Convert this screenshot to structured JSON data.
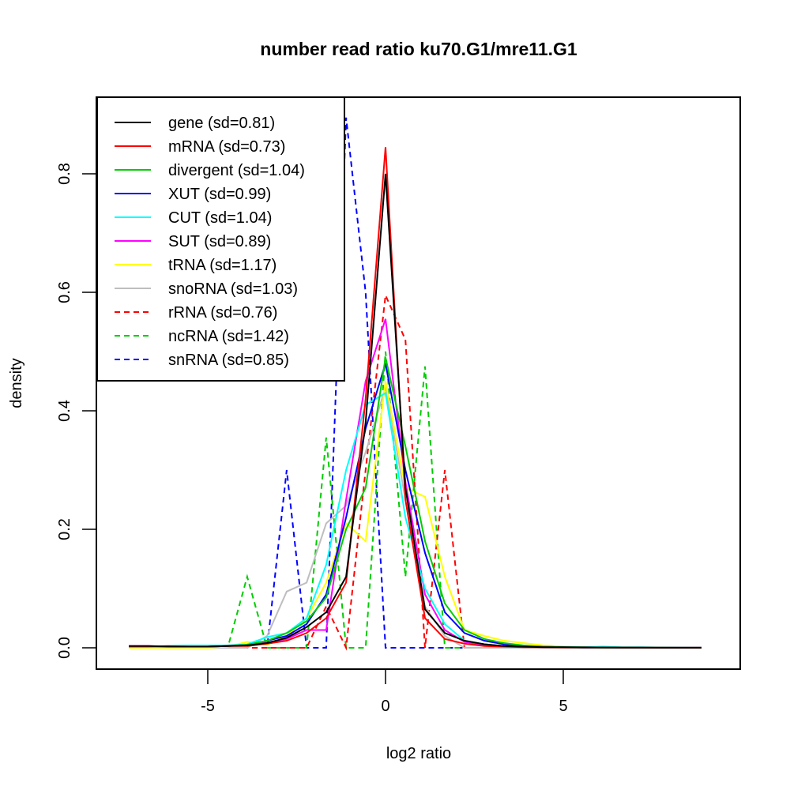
{
  "chart_data": {
    "type": "line",
    "title": "number read ratio ku70.G1/mre11.G1",
    "xlabel": "log2 ratio",
    "ylabel": "density",
    "xlim": [
      -8.2,
      10.0
    ],
    "ylim": [
      -0.035,
      0.935
    ],
    "xticks": [
      -5,
      0,
      5
    ],
    "xtick_labels": [
      "-5",
      "0",
      "5"
    ],
    "yticks": [
      0.0,
      0.2,
      0.4,
      0.6,
      0.8
    ],
    "ytick_labels": [
      "0.0",
      "0.2",
      "0.4",
      "0.6",
      "0.8"
    ],
    "grid": false,
    "legend_position": "top-left",
    "x": [
      -7.22,
      -6.67,
      -6.11,
      -5.56,
      -5.0,
      -4.44,
      -3.89,
      -3.33,
      -2.78,
      -2.22,
      -1.67,
      -1.11,
      -0.56,
      0.0,
      0.56,
      1.11,
      1.67,
      2.22,
      2.78,
      3.33,
      3.89,
      4.44,
      5.0,
      5.56,
      6.11,
      6.67,
      7.22,
      7.78,
      8.33,
      8.89
    ],
    "series": [
      {
        "name": "gene (sd=0.81)",
        "color": "#000000",
        "dash": "solid",
        "values": [
          0.003,
          0.003,
          0.002,
          0.002,
          0.002,
          0.003,
          0.004,
          0.008,
          0.017,
          0.035,
          0.06,
          0.12,
          0.38,
          0.8,
          0.27,
          0.065,
          0.025,
          0.012,
          0.006,
          0.003,
          0.002,
          0.001,
          0.001,
          0.0005,
          0.0005,
          0.0003,
          0.0003,
          0.0002,
          0.0002,
          0.0001
        ]
      },
      {
        "name": "mRNA (sd=0.73)",
        "color": "#ff0000",
        "dash": "solid",
        "values": [
          0.002,
          0.002,
          0.003,
          0.002,
          0.002,
          0.003,
          0.003,
          0.007,
          0.012,
          0.025,
          0.05,
          0.11,
          0.42,
          0.845,
          0.25,
          0.05,
          0.015,
          0.007,
          0.003,
          0.002,
          0.001,
          0.001,
          0.0005,
          0.0005,
          0.0003,
          0.0003,
          0.0002,
          0.0002,
          0.0001,
          0.0001
        ]
      },
      {
        "name": "divergent (sd=1.04)",
        "color": "#00cd00",
        "dash": "solid",
        "values": [
          0.002,
          0.002,
          0.002,
          0.002,
          0.002,
          0.003,
          0.005,
          0.012,
          0.025,
          0.045,
          0.085,
          0.2,
          0.27,
          0.49,
          0.34,
          0.18,
          0.075,
          0.03,
          0.015,
          0.008,
          0.004,
          0.002,
          0.001,
          0.001,
          0.0005,
          0.0005,
          0.0003,
          0.0003,
          0.0002,
          0.0001
        ]
      },
      {
        "name": "XUT (sd=0.99)",
        "color": "#0000ff",
        "dash": "solid",
        "values": [
          0.002,
          0.002,
          0.002,
          0.002,
          0.002,
          0.003,
          0.005,
          0.012,
          0.02,
          0.04,
          0.09,
          0.22,
          0.37,
          0.48,
          0.3,
          0.16,
          0.06,
          0.025,
          0.012,
          0.006,
          0.003,
          0.002,
          0.001,
          0.001,
          0.0005,
          0.0005,
          0.0003,
          0.0003,
          0.0002,
          0.0001
        ]
      },
      {
        "name": "CUT (sd=1.04)",
        "color": "#00ffff",
        "dash": "solid",
        "values": [
          0.002,
          0.002,
          0.003,
          0.004,
          0.004,
          0.004,
          0.006,
          0.018,
          0.025,
          0.05,
          0.14,
          0.3,
          0.41,
          0.43,
          0.22,
          0.1,
          0.04,
          0.012,
          0.006,
          0.003,
          0.003,
          0.002,
          0.001,
          0.001,
          0.002,
          0.001,
          0.001,
          0.0005,
          0.0003,
          0.0002
        ]
      },
      {
        "name": "SUT (sd=0.89)",
        "color": "#ff00ff",
        "dash": "solid",
        "values": [
          0.003,
          0.003,
          0.002,
          0.002,
          0.003,
          0.004,
          0.005,
          0.009,
          0.015,
          0.03,
          0.03,
          0.25,
          0.45,
          0.555,
          0.28,
          0.09,
          0.03,
          0.01,
          0.005,
          0.003,
          0.002,
          0.001,
          0.001,
          0.0005,
          0.0005,
          0.0003,
          0.0003,
          0.0002,
          0.0002,
          0.0001
        ]
      },
      {
        "name": "tRNA (sd=1.17)",
        "color": "#ffff00",
        "dash": "solid",
        "values": [
          0.0,
          0.0,
          0.0,
          0.0,
          0.0,
          0.002,
          0.01,
          0.005,
          0.02,
          0.05,
          0.11,
          0.21,
          0.18,
          0.45,
          0.27,
          0.255,
          0.12,
          0.03,
          0.02,
          0.012,
          0.008,
          0.004,
          0.002,
          0.001,
          0.0,
          0.0,
          0.0,
          0.0,
          0.0,
          0.0
        ]
      },
      {
        "name": "snoRNA (sd=1.03)",
        "color": "#bebebe",
        "dash": "solid",
        "values": [
          0.0,
          0.0,
          0.0,
          0.0,
          0.0,
          0.0,
          0.0,
          0.02,
          0.095,
          0.11,
          0.21,
          0.24,
          0.33,
          0.44,
          0.25,
          0.07,
          0.02,
          0.0,
          0.0,
          0.0,
          0.0,
          0.0,
          0.0,
          0.0,
          0.0,
          0.0,
          0.0,
          0.0,
          0.0,
          0.0
        ]
      },
      {
        "name": "rRNA (sd=0.76)",
        "color": "#ff0000",
        "dash": "dashed",
        "values": [
          0.0,
          0.0,
          0.0,
          0.0,
          0.0,
          0.0,
          0.0,
          0.0,
          0.0,
          0.0,
          0.07,
          0.0,
          0.3,
          0.595,
          0.52,
          0.0,
          0.3,
          0.0,
          0.0,
          0.0,
          0.0,
          0.0,
          0.0,
          0.0,
          0.0,
          0.0,
          0.0,
          0.0,
          0.0,
          0.0
        ]
      },
      {
        "name": "ncRNA (sd=1.42)",
        "color": "#00cd00",
        "dash": "dashed",
        "values": [
          0.0,
          0.0,
          0.0,
          0.0,
          0.0,
          0.0,
          0.12,
          0.0,
          0.0,
          0.0,
          0.355,
          0.0,
          0.0,
          0.5,
          0.12,
          0.475,
          0.0,
          0.0,
          0.0,
          0.0,
          0.0,
          0.0,
          0.0,
          0.0,
          0.0,
          0.0,
          0.0,
          0.0,
          0.0,
          0.0
        ]
      },
      {
        "name": "snRNA (sd=0.85)",
        "color": "#0000ff",
        "dash": "dashed",
        "values": [
          0.0,
          0.0,
          0.0,
          0.0,
          0.0,
          0.0,
          0.0,
          0.0,
          0.3,
          0.0,
          0.0,
          0.895,
          0.6,
          0.0,
          0.0,
          0.0,
          0.0,
          0.0,
          0.0,
          0.0,
          0.0,
          0.0,
          0.0,
          0.0,
          0.0,
          0.0,
          0.0,
          0.0,
          0.0,
          0.0
        ]
      }
    ]
  }
}
